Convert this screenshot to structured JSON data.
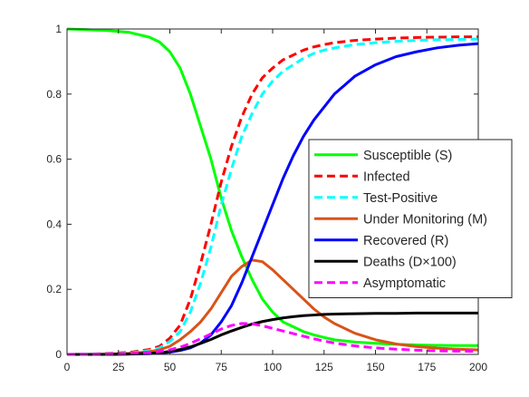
{
  "chart_data": {
    "type": "line",
    "title": "",
    "xlabel": "",
    "ylabel": "",
    "xlim": [
      0,
      200
    ],
    "ylim": [
      0,
      1
    ],
    "xticks": [
      0,
      25,
      50,
      75,
      100,
      125,
      150,
      175,
      200
    ],
    "xtick_labels": [
      "0",
      "25",
      "50",
      "75",
      "100",
      "125",
      "150",
      "175",
      "200"
    ],
    "yticks": [
      0,
      0.2,
      0.4,
      0.6,
      0.8,
      1
    ],
    "ytick_labels": [
      "0",
      "0.2",
      "0.4",
      "0.6",
      "0.8",
      "1"
    ],
    "grid": false,
    "legend_position": "right",
    "x": [
      0,
      10,
      20,
      30,
      40,
      45,
      50,
      55,
      60,
      65,
      70,
      75,
      80,
      85,
      90,
      95,
      100,
      105,
      110,
      115,
      120,
      125,
      130,
      140,
      150,
      160,
      170,
      180,
      190,
      200
    ],
    "series": [
      {
        "name": "Susceptible (S)",
        "color": "#00ff00",
        "dash": "solid",
        "values": [
          1.0,
          0.998,
          0.995,
          0.99,
          0.975,
          0.96,
          0.93,
          0.88,
          0.8,
          0.7,
          0.6,
          0.48,
          0.38,
          0.3,
          0.23,
          0.17,
          0.13,
          0.1,
          0.085,
          0.07,
          0.06,
          0.052,
          0.045,
          0.038,
          0.034,
          0.031,
          0.029,
          0.028,
          0.027,
          0.027
        ]
      },
      {
        "name": "Infected",
        "color": "#ff0000",
        "dash": "dashed",
        "values": [
          0.0,
          0.001,
          0.003,
          0.006,
          0.015,
          0.025,
          0.05,
          0.09,
          0.17,
          0.28,
          0.4,
          0.53,
          0.64,
          0.73,
          0.8,
          0.85,
          0.88,
          0.905,
          0.92,
          0.935,
          0.945,
          0.952,
          0.958,
          0.965,
          0.969,
          0.972,
          0.974,
          0.975,
          0.976,
          0.976
        ]
      },
      {
        "name": "Test-Positive",
        "color": "#00ffff",
        "dash": "dashed",
        "values": [
          0.0,
          0.001,
          0.002,
          0.004,
          0.012,
          0.02,
          0.04,
          0.07,
          0.13,
          0.22,
          0.33,
          0.46,
          0.57,
          0.67,
          0.74,
          0.8,
          0.84,
          0.87,
          0.89,
          0.91,
          0.925,
          0.935,
          0.942,
          0.952,
          0.958,
          0.962,
          0.965,
          0.967,
          0.968,
          0.969
        ]
      },
      {
        "name": "Under Monitoring (M)",
        "color": "#d95319",
        "dash": "solid",
        "values": [
          0.0,
          0.0,
          0.001,
          0.003,
          0.008,
          0.014,
          0.025,
          0.045,
          0.07,
          0.1,
          0.14,
          0.19,
          0.24,
          0.27,
          0.29,
          0.285,
          0.26,
          0.23,
          0.2,
          0.17,
          0.14,
          0.115,
          0.095,
          0.065,
          0.045,
          0.032,
          0.024,
          0.019,
          0.016,
          0.014
        ]
      },
      {
        "name": "Recovered (R)",
        "color": "#0000ff",
        "dash": "solid",
        "values": [
          0.0,
          0.0,
          0.0,
          0.001,
          0.002,
          0.004,
          0.007,
          0.012,
          0.02,
          0.035,
          0.06,
          0.1,
          0.15,
          0.22,
          0.3,
          0.38,
          0.46,
          0.54,
          0.61,
          0.67,
          0.72,
          0.76,
          0.8,
          0.855,
          0.89,
          0.915,
          0.93,
          0.942,
          0.95,
          0.955
        ]
      },
      {
        "name": "Deaths (D×100)",
        "color": "#000000",
        "dash": "solid",
        "values": [
          0.0,
          0.0,
          0.0,
          0.001,
          0.003,
          0.005,
          0.009,
          0.015,
          0.023,
          0.034,
          0.046,
          0.06,
          0.072,
          0.083,
          0.093,
          0.101,
          0.107,
          0.112,
          0.116,
          0.119,
          0.121,
          0.123,
          0.124,
          0.125,
          0.126,
          0.126,
          0.127,
          0.127,
          0.127,
          0.127
        ]
      },
      {
        "name": "Asymptomatic",
        "color": "#ff00ff",
        "dash": "dashed",
        "values": [
          0.0,
          0.0,
          0.001,
          0.002,
          0.005,
          0.009,
          0.014,
          0.022,
          0.034,
          0.048,
          0.063,
          0.078,
          0.089,
          0.095,
          0.094,
          0.088,
          0.08,
          0.072,
          0.064,
          0.056,
          0.048,
          0.041,
          0.035,
          0.026,
          0.02,
          0.016,
          0.013,
          0.011,
          0.01,
          0.009
        ]
      }
    ]
  }
}
